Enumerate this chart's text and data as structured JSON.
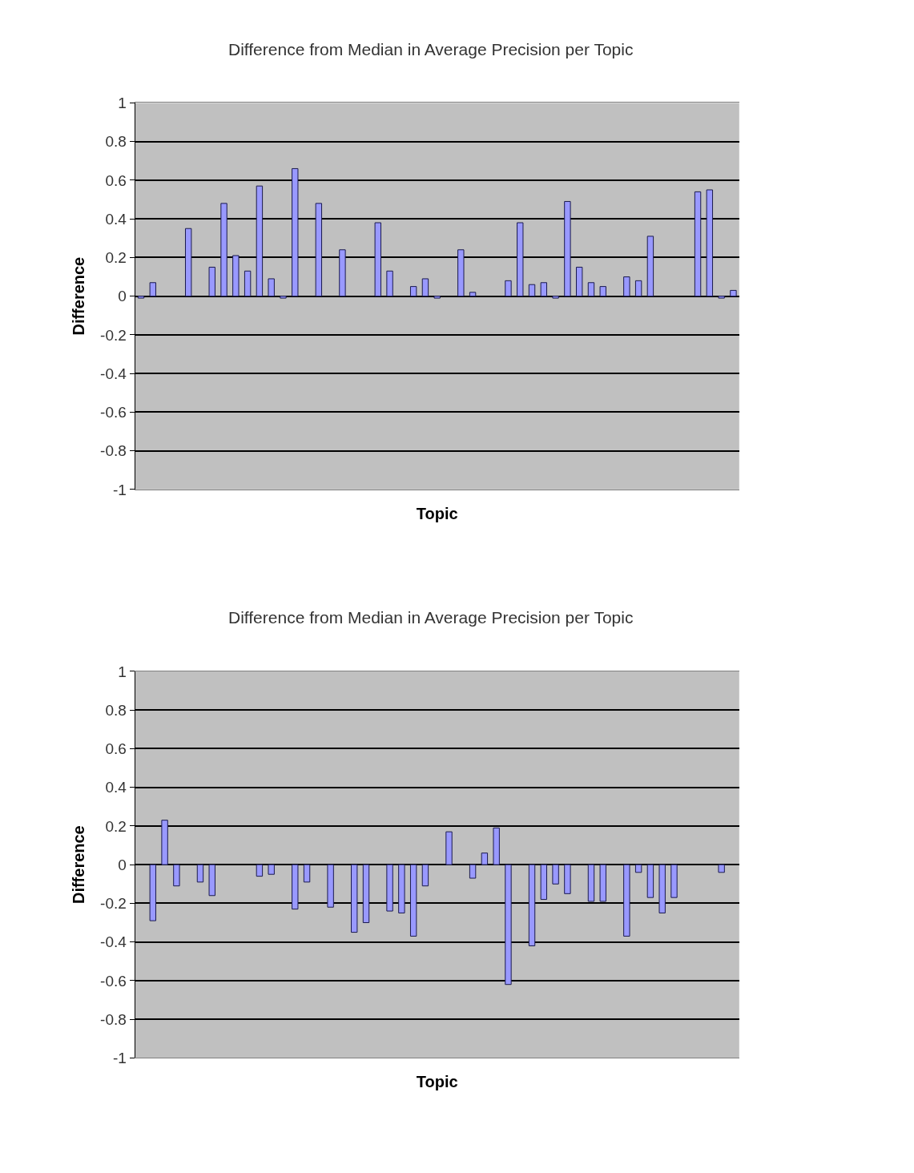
{
  "chart_data": [
    {
      "type": "bar",
      "title": "Difference from Median in Average Precision per Topic",
      "xlabel": "Topic",
      "ylabel": "Difference",
      "categories": [
        null,
        null,
        null,
        null,
        null,
        null,
        null,
        null,
        null,
        null,
        null,
        null,
        null,
        null,
        null,
        null,
        null,
        null,
        null,
        null,
        null,
        null,
        null,
        null,
        null,
        null,
        null,
        null,
        null,
        null,
        null,
        null,
        null,
        null,
        null,
        null,
        null,
        null,
        null,
        null,
        null,
        null,
        null,
        null,
        null,
        null,
        null,
        null,
        null,
        null,
        null
      ],
      "color": "#9999ff",
      "ylim": [
        -1,
        1
      ],
      "yticks": [
        -1,
        -0.8,
        -0.6,
        -0.4,
        -0.2,
        0,
        0.2,
        0.4,
        0.6,
        0.8,
        1
      ],
      "grid": "y",
      "values": [
        -0.01,
        0.07,
        null,
        null,
        0.35,
        null,
        0.15,
        0.48,
        0.21,
        0.13,
        0.57,
        0.09,
        -0.01,
        0.66,
        null,
        0.48,
        null,
        0.24,
        null,
        null,
        0.38,
        0.13,
        null,
        0.05,
        0.09,
        -0.01,
        null,
        0.24,
        0.02,
        null,
        null,
        0.08,
        0.38,
        0.06,
        0.07,
        -0.01,
        0.49,
        0.15,
        0.07,
        0.05,
        null,
        0.1,
        0.08,
        0.31,
        null,
        null,
        null,
        0.54,
        0.55,
        -0.01,
        0.03
      ]
    },
    {
      "type": "bar",
      "title": "Difference from Median in Average Precision per Topic",
      "xlabel": "Topic",
      "ylabel": "Difference",
      "categories": [
        null,
        null,
        null,
        null,
        null,
        null,
        null,
        null,
        null,
        null,
        null,
        null,
        null,
        null,
        null,
        null,
        null,
        null,
        null,
        null,
        null,
        null,
        null,
        null,
        null,
        null,
        null,
        null,
        null,
        null,
        null,
        null,
        null,
        null,
        null,
        null,
        null,
        null,
        null,
        null,
        null,
        null,
        null,
        null,
        null,
        null,
        null,
        null,
        null,
        null,
        null
      ],
      "color": "#9999ff",
      "ylim": [
        -1,
        1
      ],
      "yticks": [
        -1,
        -0.8,
        -0.6,
        -0.4,
        -0.2,
        0,
        0.2,
        0.4,
        0.6,
        0.8,
        1
      ],
      "grid": "y",
      "values": [
        null,
        -0.29,
        0.23,
        -0.11,
        null,
        -0.09,
        -0.16,
        null,
        null,
        null,
        -0.06,
        -0.05,
        null,
        -0.23,
        -0.09,
        null,
        -0.22,
        null,
        -0.35,
        -0.3,
        null,
        -0.24,
        -0.25,
        -0.37,
        -0.11,
        null,
        0.17,
        null,
        -0.07,
        0.06,
        0.19,
        -0.62,
        null,
        -0.42,
        -0.18,
        -0.1,
        -0.15,
        null,
        -0.19,
        -0.19,
        null,
        -0.37,
        -0.04,
        -0.17,
        -0.25,
        -0.17,
        null,
        null,
        null,
        -0.04,
        null
      ]
    }
  ]
}
